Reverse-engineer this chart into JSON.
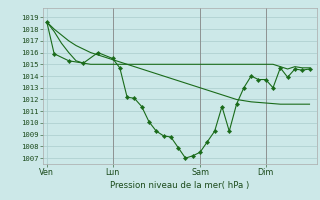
{
  "bg_color": "#cce8e8",
  "grid_color": "#aacccc",
  "line_color": "#1a6b1a",
  "ylabel_values": [
    1007,
    1008,
    1009,
    1010,
    1011,
    1012,
    1013,
    1014,
    1015,
    1016,
    1017,
    1018,
    1019
  ],
  "ylim": [
    1006.5,
    1019.8
  ],
  "xlabel": "Pression niveau de la mer( hPa )",
  "xtick_labels": [
    "Ven",
    "Lun",
    "Sam",
    "Dim"
  ],
  "xtick_positions": [
    0,
    9,
    21,
    30
  ],
  "vline_positions": [
    9,
    21,
    30
  ],
  "xlim": [
    -0.5,
    37
  ],
  "series1_x": [
    0,
    1,
    2,
    3,
    4,
    5,
    6,
    7,
    8,
    9,
    10,
    11,
    12,
    13,
    14,
    15,
    16,
    17,
    18,
    19,
    20,
    21,
    22,
    23,
    24,
    25,
    26,
    27,
    28,
    29,
    30,
    31,
    32,
    33,
    34,
    35,
    36
  ],
  "series1_y": [
    1018.6,
    1018.0,
    1017.5,
    1017.0,
    1016.6,
    1016.3,
    1016.0,
    1015.8,
    1015.6,
    1015.4,
    1015.2,
    1015.0,
    1014.8,
    1014.6,
    1014.4,
    1014.2,
    1014.0,
    1013.8,
    1013.6,
    1013.4,
    1013.2,
    1013.0,
    1012.8,
    1012.6,
    1012.4,
    1012.2,
    1012.0,
    1011.9,
    1011.8,
    1011.75,
    1011.7,
    1011.65,
    1011.6,
    1011.6,
    1011.6,
    1011.6,
    1011.6
  ],
  "series2_x": [
    0,
    1,
    2,
    3,
    4,
    5,
    6,
    7,
    8,
    9,
    10,
    11,
    12,
    13,
    14,
    15,
    16,
    17,
    18,
    19,
    20,
    21,
    22,
    23,
    24,
    25,
    26,
    27,
    28,
    29,
    30,
    31,
    32,
    33,
    34,
    35,
    36
  ],
  "series2_y": [
    1018.6,
    1017.8,
    1016.8,
    1016.0,
    1015.3,
    1015.1,
    1015.0,
    1015.0,
    1015.0,
    1015.0,
    1015.0,
    1015.0,
    1015.0,
    1015.0,
    1015.0,
    1015.0,
    1015.0,
    1015.0,
    1015.0,
    1015.0,
    1015.0,
    1015.0,
    1015.0,
    1015.0,
    1015.0,
    1015.0,
    1015.0,
    1015.0,
    1015.0,
    1015.0,
    1015.0,
    1015.0,
    1014.8,
    1014.6,
    1014.8,
    1014.7,
    1014.7
  ],
  "series3_x": [
    0,
    1,
    3,
    5,
    7,
    9,
    10,
    11,
    12,
    13,
    14,
    15,
    16,
    17,
    18,
    19,
    20,
    21,
    22,
    23,
    24,
    25,
    26,
    27,
    28,
    29,
    30,
    31,
    32,
    33,
    34,
    35,
    36
  ],
  "series3_y": [
    1018.6,
    1015.9,
    1015.3,
    1015.1,
    1016.0,
    1015.5,
    1014.7,
    1012.2,
    1012.1,
    1011.4,
    1010.1,
    1009.3,
    1008.9,
    1008.8,
    1007.9,
    1007.0,
    1007.2,
    1007.5,
    1008.4,
    1009.3,
    1011.4,
    1009.3,
    1011.6,
    1013.0,
    1014.0,
    1013.7,
    1013.7,
    1013.0,
    1014.7,
    1013.9,
    1014.6,
    1014.5,
    1014.6
  ]
}
